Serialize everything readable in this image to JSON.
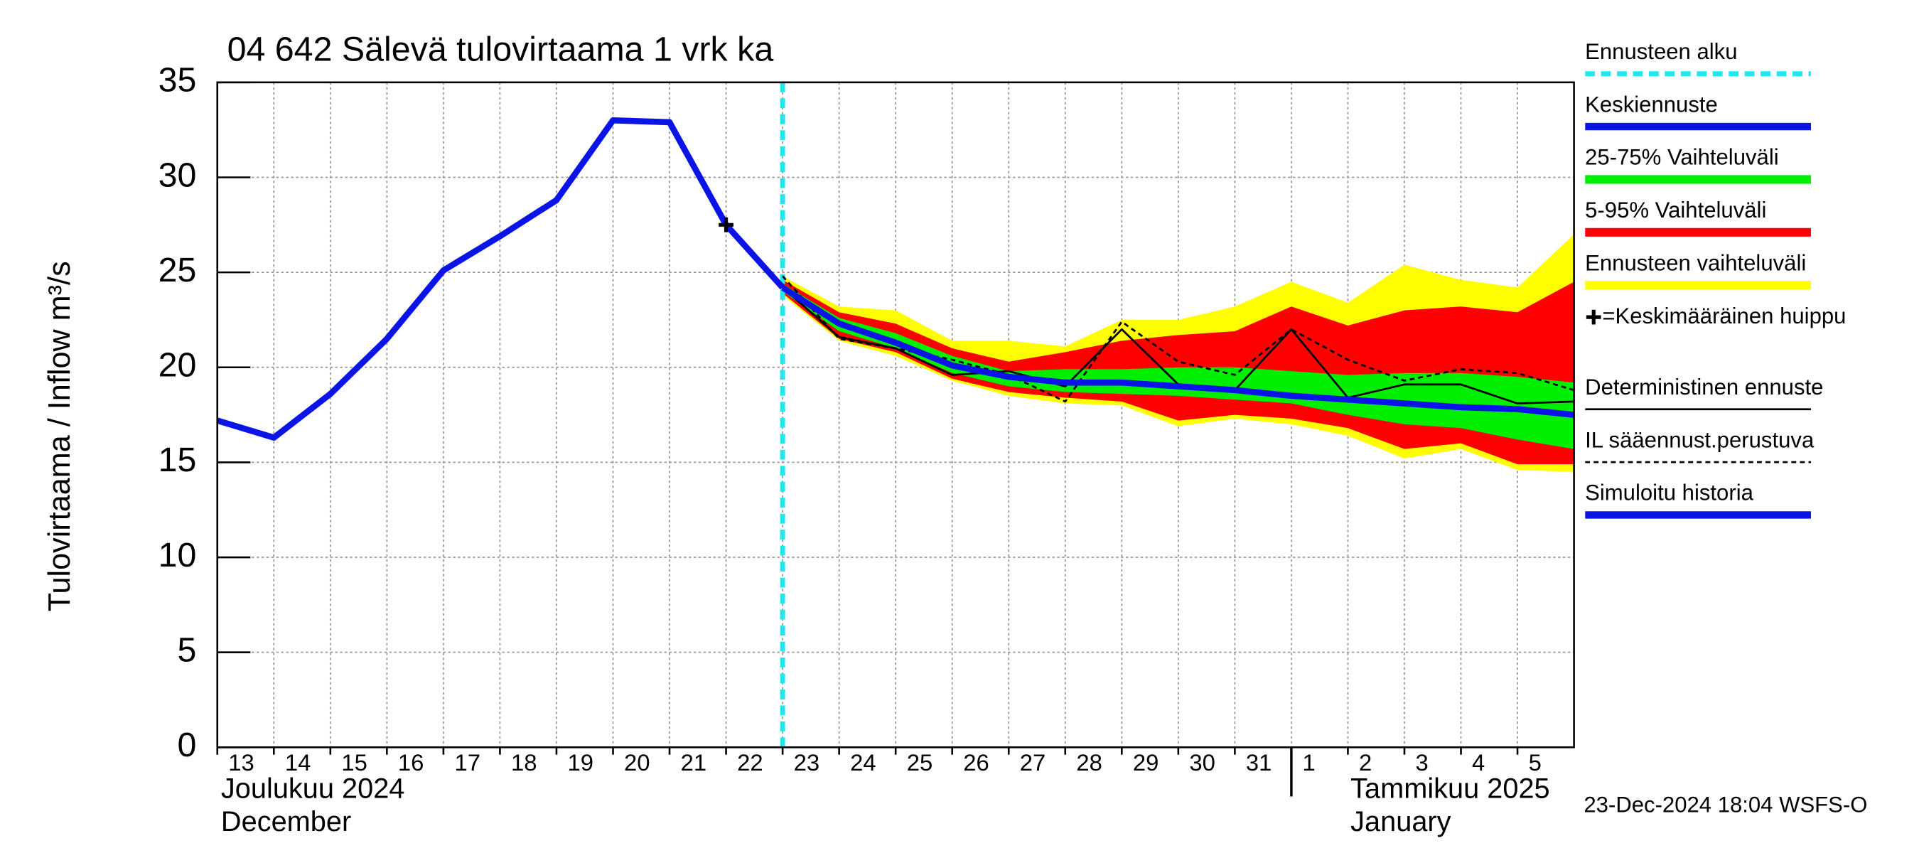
{
  "chart_data": {
    "type": "line",
    "title": "04 642 Sälevä tulovirtaama 1 vrk ka",
    "y_label": "Tulovirtaama / Inflow    m³/s",
    "x_month_labels": [
      "Joulukuu  2024",
      "December",
      "Tammikuu  2025",
      "January"
    ],
    "timestamp": "23-Dec-2024 18:04 WSFS-O",
    "xlim": [
      "2024-12-13",
      "2025-01-06"
    ],
    "xticks": [
      {
        "value": "2024-12-13",
        "label": "13"
      },
      {
        "value": "2024-12-14",
        "label": "14"
      },
      {
        "value": "2024-12-15",
        "label": "15"
      },
      {
        "value": "2024-12-16",
        "label": "16"
      },
      {
        "value": "2024-12-17",
        "label": "17"
      },
      {
        "value": "2024-12-18",
        "label": "18"
      },
      {
        "value": "2024-12-19",
        "label": "19"
      },
      {
        "value": "2024-12-20",
        "label": "20"
      },
      {
        "value": "2024-12-21",
        "label": "21"
      },
      {
        "value": "2024-12-22",
        "label": "22"
      },
      {
        "value": "2024-12-23",
        "label": "23"
      },
      {
        "value": "2024-12-24",
        "label": "24"
      },
      {
        "value": "2024-12-25",
        "label": "25"
      },
      {
        "value": "2024-12-26",
        "label": "26"
      },
      {
        "value": "2024-12-27",
        "label": "27"
      },
      {
        "value": "2024-12-28",
        "label": "28"
      },
      {
        "value": "2024-12-29",
        "label": "29"
      },
      {
        "value": "2024-12-30",
        "label": "30"
      },
      {
        "value": "2024-12-31",
        "label": "31"
      },
      {
        "value": "2025-01-01",
        "label": "1"
      },
      {
        "value": "2025-01-02",
        "label": "2"
      },
      {
        "value": "2025-01-03",
        "label": "3"
      },
      {
        "value": "2025-01-04",
        "label": "4"
      },
      {
        "value": "2025-01-05",
        "label": "5"
      }
    ],
    "ylim": [
      0,
      35
    ],
    "yticks": [
      0,
      5,
      10,
      15,
      20,
      25,
      30,
      35
    ],
    "grid": true,
    "series": [
      {
        "name": "Ennusteen alku",
        "kind": "vline",
        "color": "#22e6ee",
        "style": "dashed",
        "x": "2024-12-23"
      },
      {
        "name": "Keskiennuste",
        "kind": "line",
        "color": "#0a14e6",
        "style": "solid",
        "weight": "thick",
        "x": [
          "2024-12-23",
          "2024-12-24",
          "2024-12-25",
          "2024-12-26",
          "2024-12-27",
          "2024-12-28",
          "2024-12-29",
          "2024-12-30",
          "2024-12-31",
          "2025-01-01",
          "2025-01-02",
          "2025-01-03",
          "2025-01-04",
          "2025-01-05",
          "2025-01-06"
        ],
        "values": [
          24.2,
          22.3,
          21.3,
          20.1,
          19.5,
          19.2,
          19.2,
          19.0,
          18.8,
          18.5,
          18.3,
          18.1,
          17.9,
          17.8,
          17.5
        ]
      },
      {
        "name": "25-75% Vaihteluväli",
        "kind": "band",
        "color": "#00ee00",
        "x": [
          "2024-12-23",
          "2024-12-24",
          "2024-12-25",
          "2024-12-26",
          "2024-12-27",
          "2024-12-28",
          "2024-12-29",
          "2024-12-30",
          "2024-12-31",
          "2025-01-01",
          "2025-01-02",
          "2025-01-03",
          "2025-01-04",
          "2025-01-05",
          "2025-01-06"
        ],
        "lower": [
          24.0,
          21.9,
          21.0,
          19.7,
          19.0,
          18.7,
          18.6,
          18.5,
          18.3,
          18.1,
          17.5,
          17.0,
          16.8,
          16.2,
          15.7
        ],
        "upper": [
          24.4,
          22.6,
          21.8,
          20.6,
          19.8,
          19.9,
          19.9,
          20.0,
          20.0,
          19.8,
          19.6,
          19.7,
          19.7,
          19.5,
          19.2
        ]
      },
      {
        "name": "5-95% Vaihteluväli",
        "kind": "band",
        "color": "#ff0000",
        "x": [
          "2024-12-23",
          "2024-12-24",
          "2024-12-25",
          "2024-12-26",
          "2024-12-27",
          "2024-12-28",
          "2024-12-29",
          "2024-12-30",
          "2024-12-31",
          "2025-01-01",
          "2025-01-02",
          "2025-01-03",
          "2025-01-04",
          "2025-01-05",
          "2025-01-06"
        ],
        "lower": [
          23.9,
          21.5,
          20.8,
          19.4,
          18.7,
          18.4,
          18.2,
          17.2,
          17.5,
          17.3,
          16.8,
          15.7,
          16.0,
          14.9,
          14.9
        ],
        "upper": [
          24.6,
          22.9,
          22.3,
          21.0,
          20.3,
          20.8,
          21.4,
          21.7,
          21.9,
          23.2,
          22.2,
          23.0,
          23.2,
          22.9,
          24.5
        ]
      },
      {
        "name": "Ennusteen vaihteluväli",
        "kind": "band",
        "color": "#ffff00",
        "x": [
          "2024-12-23",
          "2024-12-24",
          "2024-12-25",
          "2024-12-26",
          "2024-12-27",
          "2024-12-28",
          "2024-12-29",
          "2024-12-30",
          "2024-12-31",
          "2025-01-01",
          "2025-01-02",
          "2025-01-03",
          "2025-01-04",
          "2025-01-05",
          "2025-01-06"
        ],
        "lower": [
          23.8,
          21.4,
          20.6,
          19.3,
          18.5,
          18.1,
          18.0,
          16.9,
          17.3,
          17.0,
          16.4,
          15.2,
          15.7,
          14.6,
          14.5
        ],
        "upper": [
          24.8,
          23.2,
          23.0,
          21.4,
          21.4,
          21.1,
          22.5,
          22.5,
          23.2,
          24.5,
          23.4,
          25.4,
          24.6,
          24.2,
          27.0
        ]
      },
      {
        "name": "=Keskimääräinen huippu",
        "kind": "marker",
        "color": "#000000",
        "x": "2024-12-22",
        "values": 27.5
      },
      {
        "name": "Deterministinen ennuste",
        "kind": "line",
        "color": "#000000",
        "style": "solid",
        "weight": "thin",
        "x": [
          "2024-12-23",
          "2024-12-24",
          "2024-12-25",
          "2024-12-26",
          "2024-12-27",
          "2024-12-28",
          "2024-12-29",
          "2024-12-30",
          "2024-12-31",
          "2025-01-01",
          "2025-01-02",
          "2025-01-03",
          "2025-01-04",
          "2025-01-05",
          "2025-01-06"
        ],
        "values": [
          24.2,
          21.6,
          21.0,
          19.6,
          19.8,
          19.0,
          22.0,
          19.1,
          18.8,
          22.0,
          18.4,
          19.1,
          19.1,
          18.1,
          18.2
        ]
      },
      {
        "name": "IL sääennust.perustuva",
        "kind": "line",
        "color": "#000000",
        "style": "dashed",
        "weight": "thin",
        "x": [
          "2024-12-23",
          "2024-12-24",
          "2024-12-25",
          "2024-12-26",
          "2024-12-27",
          "2024-12-28",
          "2024-12-29",
          "2024-12-30",
          "2024-12-31",
          "2025-01-01",
          "2025-01-02",
          "2025-01-03",
          "2025-01-04",
          "2025-01-05",
          "2025-01-06"
        ],
        "values": [
          24.8,
          21.5,
          21.0,
          20.4,
          19.6,
          18.2,
          22.4,
          20.3,
          19.6,
          22.0,
          20.4,
          19.3,
          19.9,
          19.7,
          18.8
        ]
      },
      {
        "name": "Simuloitu historia",
        "kind": "line",
        "color": "#0a14e6",
        "style": "solid",
        "weight": "thick",
        "x": [
          "2024-12-13",
          "2024-12-14",
          "2024-12-15",
          "2024-12-16",
          "2024-12-17",
          "2024-12-18",
          "2024-12-19",
          "2024-12-20",
          "2024-12-21",
          "2024-12-22",
          "2024-12-23"
        ],
        "values": [
          17.2,
          16.3,
          18.6,
          21.5,
          25.1,
          26.9,
          28.8,
          33.0,
          32.9,
          27.5,
          24.2
        ]
      }
    ]
  }
}
